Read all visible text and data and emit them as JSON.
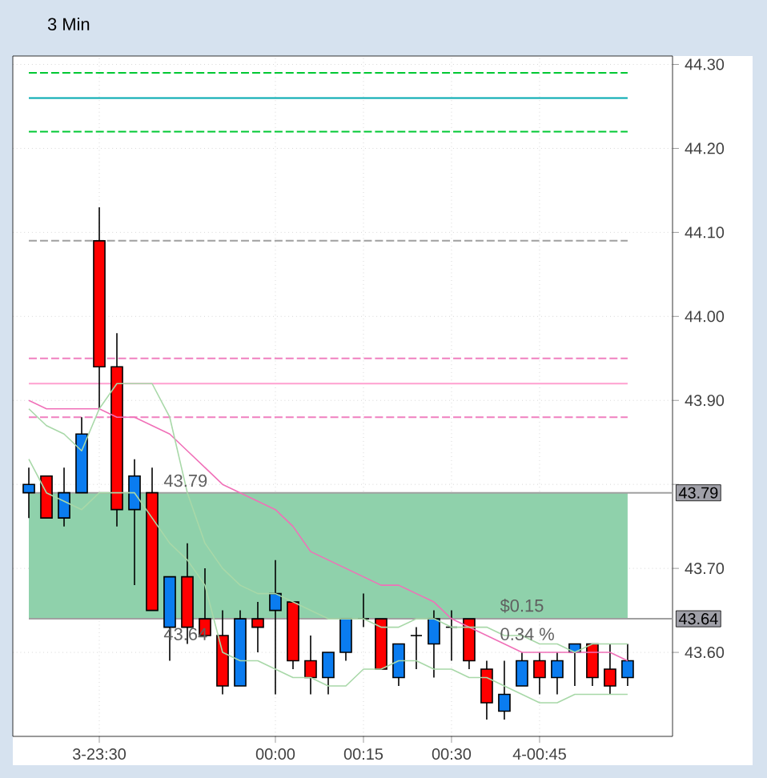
{
  "chart_data": {
    "type": "candlestick",
    "title": "3 Min",
    "categories": [
      null,
      null,
      null,
      null,
      "3-23:30",
      null,
      null,
      null,
      null,
      null,
      null,
      null,
      null,
      null,
      "00:00",
      null,
      null,
      null,
      null,
      "00:15",
      null,
      null,
      null,
      null,
      "00:30",
      null,
      null,
      null,
      null,
      "4-00:45",
      null,
      null,
      null,
      null,
      null
    ],
    "ohlc": [
      [
        43.79,
        43.82,
        43.76,
        43.8
      ],
      [
        43.81,
        43.81,
        43.76,
        43.76
      ],
      [
        43.76,
        43.82,
        43.75,
        43.79
      ],
      [
        43.79,
        43.88,
        43.79,
        43.86
      ],
      [
        44.09,
        44.13,
        43.89,
        43.94
      ],
      [
        43.94,
        43.98,
        43.75,
        43.77
      ],
      [
        43.77,
        43.83,
        43.68,
        43.81
      ],
      [
        43.79,
        43.82,
        43.65,
        43.65
      ],
      [
        43.63,
        43.69,
        43.59,
        43.69
      ],
      [
        43.69,
        43.73,
        43.61,
        43.63
      ],
      [
        43.64,
        43.7,
        43.62,
        43.62
      ],
      [
        43.62,
        43.65,
        43.55,
        43.56
      ],
      [
        43.56,
        43.65,
        43.56,
        43.64
      ],
      [
        43.64,
        43.66,
        43.6,
        43.63
      ],
      [
        43.65,
        43.71,
        43.55,
        43.67
      ],
      [
        43.66,
        43.66,
        43.58,
        43.59
      ],
      [
        43.59,
        43.62,
        43.55,
        43.57
      ],
      [
        43.57,
        43.6,
        43.55,
        43.6
      ],
      [
        43.6,
        43.64,
        43.59,
        43.64
      ],
      [
        43.64,
        43.67,
        43.63,
        43.64
      ],
      [
        43.64,
        43.64,
        43.58,
        43.58
      ],
      [
        43.57,
        43.61,
        43.56,
        43.61
      ],
      [
        43.62,
        43.63,
        43.58,
        43.62
      ],
      [
        43.61,
        43.65,
        43.57,
        43.64
      ],
      [
        43.63,
        43.65,
        43.59,
        43.63
      ],
      [
        43.64,
        43.64,
        43.58,
        43.59
      ],
      [
        43.58,
        43.59,
        43.52,
        43.54
      ],
      [
        43.53,
        43.59,
        43.52,
        43.55
      ],
      [
        43.56,
        43.6,
        43.56,
        43.59
      ],
      [
        43.59,
        43.6,
        43.55,
        43.57
      ],
      [
        43.57,
        43.6,
        43.55,
        43.59
      ],
      [
        43.6,
        43.61,
        43.56,
        43.61
      ],
      [
        43.61,
        43.61,
        43.56,
        43.57
      ],
      [
        43.58,
        43.61,
        43.55,
        43.56
      ],
      [
        43.57,
        43.61,
        43.56,
        43.59
      ]
    ],
    "colors": [
      "#0a7cf0",
      "#ff0000",
      "#0a7cf0",
      "#0a7cf0",
      "#ff0000",
      "#ff0000",
      "#0a7cf0",
      "#ff0000",
      "#0a7cf0",
      "#ff0000",
      "#ff0000",
      "#ff0000",
      "#0a7cf0",
      "#ff0000",
      "#0a7cf0",
      "#ff0000",
      "#ff0000",
      "#0a7cf0",
      "#0a7cf0",
      "#000000",
      "#ff0000",
      "#0a7cf0",
      "#000000",
      "#0a7cf0",
      "#000000",
      "#ff0000",
      "#ff0000",
      "#0a7cf0",
      "#0a7cf0",
      "#ff0000",
      "#0a7cf0",
      "#0a7cf0",
      "#ff0000",
      "#ff0000",
      "#0a7cf0"
    ],
    "series": [
      {
        "type": "line",
        "color": "#f070b8",
        "values": [
          43.9,
          43.89,
          43.89,
          43.89,
          43.89,
          43.88,
          43.88,
          43.87,
          43.86,
          43.84,
          43.82,
          43.8,
          43.79,
          43.78,
          43.77,
          43.75,
          43.72,
          43.71,
          43.7,
          43.69,
          43.68,
          43.68,
          43.67,
          43.66,
          43.64,
          43.63,
          43.62,
          43.61,
          43.6,
          43.6,
          43.6,
          43.6,
          43.6,
          43.6,
          43.59
        ]
      },
      {
        "type": "line",
        "color": "#a8d8a8",
        "values": [
          43.89,
          43.87,
          43.86,
          43.84,
          43.89,
          43.92,
          43.92,
          43.92,
          43.88,
          43.79,
          43.73,
          43.7,
          43.68,
          43.67,
          43.67,
          43.66,
          43.65,
          43.64,
          43.64,
          43.64,
          43.63,
          43.63,
          43.64,
          43.64,
          43.63,
          43.63,
          43.63,
          43.62,
          43.62,
          43.61,
          43.61,
          43.6,
          43.61,
          43.61,
          43.61
        ]
      },
      {
        "type": "line",
        "color": "#a8d8a8",
        "values": [
          43.83,
          43.79,
          43.78,
          43.77,
          43.79,
          43.79,
          43.79,
          43.76,
          43.73,
          43.71,
          43.68,
          43.6,
          43.59,
          43.59,
          43.58,
          43.57,
          43.57,
          43.56,
          43.56,
          43.58,
          43.58,
          43.59,
          43.59,
          43.58,
          43.58,
          43.57,
          43.57,
          43.56,
          43.55,
          43.54,
          43.54,
          43.55,
          43.55,
          43.55,
          43.55
        ]
      }
    ],
    "ref_lines": [
      {
        "axis": "y",
        "value": 44.29,
        "color": "#00c832",
        "line_style": "dashed"
      },
      {
        "axis": "y",
        "value": 44.26,
        "color": "#00a8b0",
        "line_style": "solid"
      },
      {
        "axis": "y",
        "value": 44.22,
        "color": "#00c832",
        "line_style": "dashed"
      },
      {
        "axis": "y",
        "value": 44.09,
        "color": "#a0a0a0",
        "line_style": "dashed"
      },
      {
        "axis": "y",
        "value": 43.95,
        "color": "#f080c0",
        "line_style": "dashed"
      },
      {
        "axis": "y",
        "value": 43.92,
        "color": "#ffa0d0",
        "line_style": "solid"
      },
      {
        "axis": "y",
        "value": 43.88,
        "color": "#f080c0",
        "line_style": "dashed"
      },
      {
        "axis": "y",
        "value": 43.79,
        "color": "#a0a0a0",
        "line_style": "solid",
        "label": "43.79"
      },
      {
        "axis": "y",
        "value": 43.64,
        "color": "#a0a0a0",
        "line_style": "solid",
        "label": "43.64"
      }
    ],
    "bands": [
      {
        "axis": "y",
        "from": 43.64,
        "to": 43.79,
        "color": "#8fd1ab"
      }
    ],
    "annotations": [
      {
        "text": "43.79",
        "y": 43.79
      },
      {
        "text": "43.64",
        "y": 43.64
      },
      {
        "text": "$0.15",
        "y": 43.64
      },
      {
        "text": "0.34 %",
        "y": 43.64
      }
    ],
    "ylim": [
      43.5,
      44.31
    ],
    "yticks": [
      {
        "value": 43.6,
        "label": "43.60"
      },
      {
        "value": 43.7,
        "label": "43.70"
      },
      {
        "value": 43.8,
        "label": null
      },
      {
        "value": 43.9,
        "label": "43.90"
      },
      {
        "value": 44.0,
        "label": "44.00"
      },
      {
        "value": 44.1,
        "label": "44.10"
      },
      {
        "value": 44.2,
        "label": "44.20"
      },
      {
        "value": 44.3,
        "label": "44.30"
      }
    ],
    "grid": true
  }
}
